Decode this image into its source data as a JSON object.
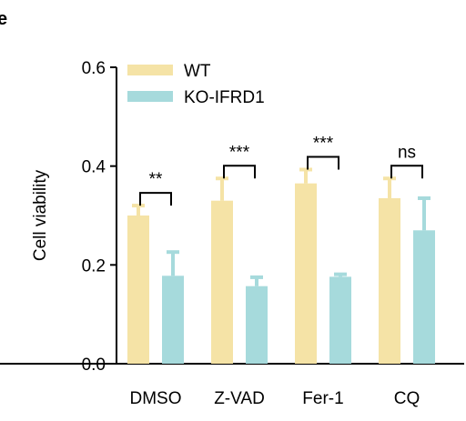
{
  "panel_mark": "e",
  "chart_data": {
    "type": "bar",
    "title": "",
    "xlabel": "",
    "ylabel": "Cell viability",
    "ylim": [
      0,
      0.6
    ],
    "yticks": [
      0.0,
      0.2,
      0.4,
      0.6
    ],
    "ytick_labels": [
      "0.0",
      "0.2",
      "0.4",
      "0.6"
    ],
    "categories": [
      "DMSO",
      "Z-VAD",
      "Fer-1",
      "CQ"
    ],
    "legend_position": "top-left",
    "series": [
      {
        "name": "WT",
        "color": "#f5e3a6",
        "values": [
          0.3,
          0.33,
          0.365,
          0.335
        ],
        "errors": [
          0.02,
          0.045,
          0.028,
          0.04
        ]
      },
      {
        "name": "KO-IFRD1",
        "color": "#a6dadc",
        "values": [
          0.178,
          0.157,
          0.176,
          0.27
        ],
        "errors": [
          0.048,
          0.018,
          0.005,
          0.065
        ]
      }
    ],
    "significance": [
      "**",
      "***",
      "***",
      "ns"
    ]
  }
}
